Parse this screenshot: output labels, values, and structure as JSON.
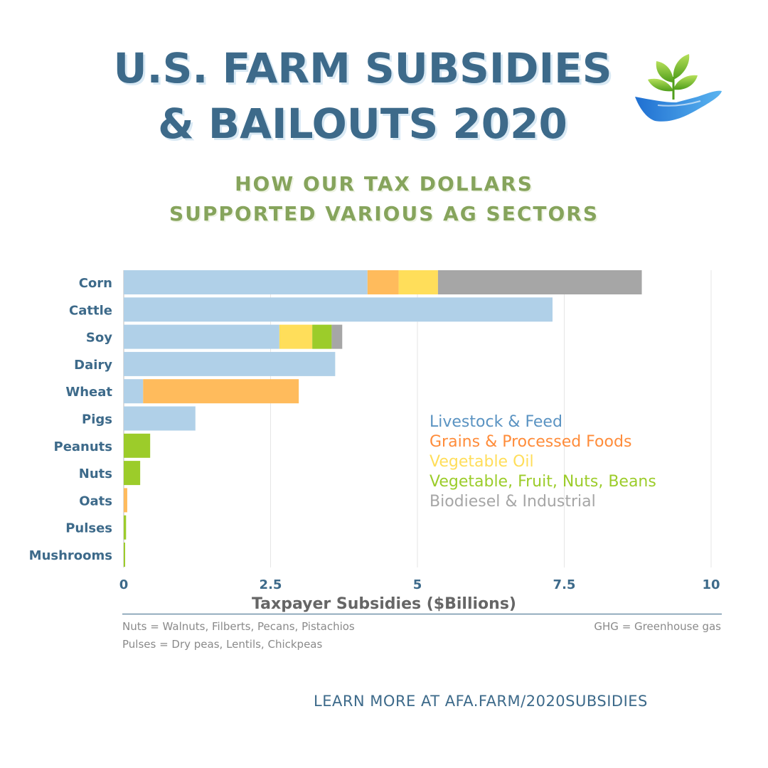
{
  "header": {
    "title_line1": "U.S. FARM SUBSIDIES",
    "title_line2": "& BAILOUTS 2020",
    "subtitle_line1": "HOW OUR TAX DOLLARS",
    "subtitle_line2": "SUPPORTED VARIOUS AG SECTORS",
    "logo_icon": "hand-holding-sprout-icon"
  },
  "colors": {
    "livestock": "#b0d0e8",
    "grains": "#ffbb5c",
    "vegoil": "#ffde5a",
    "vegfruit": "#9ccc2a",
    "biodiesel": "#a6a6a6",
    "title": "#3d6a8a",
    "subtitle": "#86a45c"
  },
  "chart_data": {
    "type": "bar",
    "orientation": "horizontal",
    "stacked": true,
    "categories": [
      "Corn",
      "Cattle",
      "Soy",
      "Dairy",
      "Wheat",
      "Pigs",
      "Peanuts",
      "Nuts",
      "Oats",
      "Pulses",
      "Mushrooms"
    ],
    "series": [
      {
        "name": "Livestock & Feed",
        "color": "#b0d0e8",
        "values": [
          4.15,
          7.3,
          2.65,
          3.6,
          0.33,
          1.22,
          0,
          0,
          0,
          0,
          0
        ]
      },
      {
        "name": "Grains & Processed Foods",
        "color": "#ffbb5c",
        "values": [
          0.53,
          0,
          0,
          0,
          2.65,
          0,
          0,
          0,
          0.06,
          0,
          0
        ]
      },
      {
        "name": "Vegetable Oil",
        "color": "#ffde5a",
        "values": [
          0.67,
          0,
          0.56,
          0,
          0,
          0,
          0,
          0,
          0,
          0,
          0
        ]
      },
      {
        "name": "Vegetable, Fruit, Nuts, Beans",
        "color": "#9ccc2a",
        "values": [
          0,
          0,
          0.33,
          0,
          0,
          0,
          0.45,
          0.28,
          0,
          0.04,
          0.02
        ]
      },
      {
        "name": "Biodiesel & Industrial",
        "color": "#a6a6a6",
        "values": [
          3.47,
          0,
          0.18,
          0,
          0,
          0,
          0,
          0,
          0,
          0,
          0
        ]
      }
    ],
    "xlabel": "Taxpayer Subsidies  ($Billions)",
    "xlim": [
      0,
      10
    ],
    "xticks": [
      0,
      2.5,
      5,
      7.5,
      10
    ],
    "xtick_labels": [
      "0",
      "2.5",
      "5",
      "7.5",
      "10"
    ],
    "grid": true,
    "legend_position": "right"
  },
  "footnotes": {
    "nuts": "Nuts = Walnuts, Filberts, Pecans, Pistachios",
    "pulses": "Pulses = Dry peas, Lentils, Chickpeas",
    "ghg": "GHG = Greenhouse gas"
  },
  "footer": {
    "learn_more": "LEARN MORE AT AFA.FARM/2020SUBSIDIES"
  }
}
